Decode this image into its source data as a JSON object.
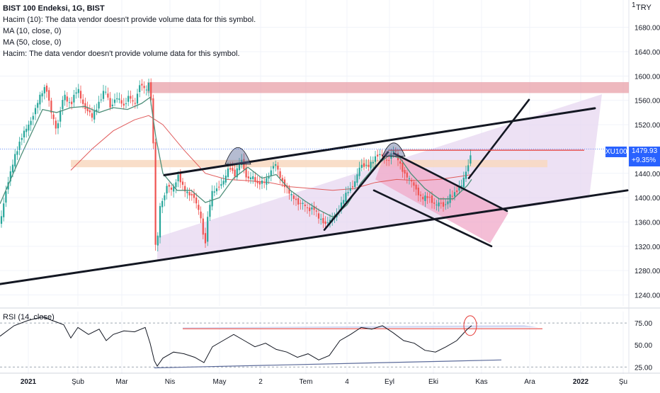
{
  "legend": {
    "title": "BIST 100 Endeksi, 1G, BIST",
    "line1": "Hacim (10): The data vendor doesn't provide volume data for this symbol.",
    "line2": "MA (10, close, 0)",
    "line3": "MA (50, close, 0)",
    "line4": "Hacim: The data vendor doesn't provide volume data for this symbol."
  },
  "rsi_label": "RSI (14, close)",
  "currency": "TRY",
  "currency_top": "1",
  "symbol_badge": "XU100",
  "last_price": "1479.93",
  "last_change": "+9.35%",
  "colors": {
    "up": "#26a69a",
    "down": "#ef5350",
    "ma_fast": "#4e8f7a",
    "ma_slow": "#e05a5a",
    "rsi_line": "#131722",
    "channel_fill": "#e6d4f0",
    "wedge_fill": "#f0a8c8",
    "resistance_zone": "#e8a0a8",
    "support_zone": "#f8d8c0",
    "badge": "#2962ff"
  },
  "chart_data": [
    {
      "type": "candlestick",
      "title": "BIST 100 Endeksi, 1G, BIST",
      "x_ticks": [
        "2021",
        "Şub",
        "Mar",
        "Nis",
        "May",
        "2",
        "Tem",
        "4",
        "Eyl",
        "Eki",
        "Kas",
        "Ara",
        "2022",
        "Şu"
      ],
      "y_ticks": [
        1240,
        1280,
        1320,
        1360,
        1400,
        1440,
        1480,
        1520,
        1560,
        1600,
        1640,
        1680
      ],
      "ylim": [
        1222,
        1725
      ],
      "last_value": 1479.93,
      "grid": true,
      "series": [
        {
          "name": "MA (10, close, 0)"
        },
        {
          "name": "MA (50, close, 0)"
        }
      ],
      "price_path": [
        [
          0,
          1360
        ],
        [
          20,
          1470
        ],
        [
          40,
          1520
        ],
        [
          55,
          1560
        ],
        [
          65,
          1585
        ],
        [
          72,
          1545
        ],
        [
          80,
          1505
        ],
        [
          90,
          1575
        ],
        [
          100,
          1550
        ],
        [
          110,
          1580
        ],
        [
          120,
          1548
        ],
        [
          130,
          1530
        ],
        [
          140,
          1560
        ],
        [
          148,
          1578
        ],
        [
          156,
          1545
        ],
        [
          164,
          1570
        ],
        [
          170,
          1560
        ],
        [
          175,
          1545
        ],
        [
          183,
          1570
        ],
        [
          190,
          1555
        ],
        [
          198,
          1585
        ],
        [
          205,
          1575
        ],
        [
          210,
          1590
        ],
        [
          214,
          1560
        ],
        [
          217,
          1470
        ],
        [
          219,
          1350
        ],
        [
          221,
          1260
        ],
        [
          224,
          1380
        ],
        [
          230,
          1395
        ],
        [
          236,
          1425
        ],
        [
          244,
          1410
        ],
        [
          252,
          1435
        ],
        [
          260,
          1418
        ],
        [
          268,
          1402
        ],
        [
          276,
          1395
        ],
        [
          284,
          1370
        ],
        [
          289,
          1315
        ],
        [
          294,
          1372
        ],
        [
          300,
          1410
        ],
        [
          308,
          1420
        ],
        [
          316,
          1425
        ],
        [
          324,
          1450
        ],
        [
          332,
          1440
        ],
        [
          340,
          1462
        ],
        [
          348,
          1430
        ],
        [
          356,
          1440
        ],
        [
          364,
          1418
        ],
        [
          372,
          1425
        ],
        [
          380,
          1440
        ],
        [
          388,
          1455
        ],
        [
          396,
          1432
        ],
        [
          404,
          1420
        ],
        [
          412,
          1400
        ],
        [
          420,
          1390
        ],
        [
          428,
          1395
        ],
        [
          436,
          1375
        ],
        [
          444,
          1382
        ],
        [
          452,
          1368
        ],
        [
          460,
          1352
        ],
        [
          468,
          1365
        ],
        [
          476,
          1375
        ],
        [
          484,
          1392
        ],
        [
          492,
          1412
        ],
        [
          500,
          1425
        ],
        [
          508,
          1448
        ],
        [
          516,
          1452
        ],
        [
          524,
          1460
        ],
        [
          532,
          1465
        ],
        [
          540,
          1470
        ],
        [
          548,
          1462
        ],
        [
          556,
          1477
        ],
        [
          564,
          1458
        ],
        [
          572,
          1440
        ],
        [
          580,
          1425
        ],
        [
          588,
          1412
        ],
        [
          596,
          1402
        ],
        [
          604,
          1398
        ],
        [
          612,
          1390
        ],
        [
          620,
          1395
        ],
        [
          628,
          1380
        ],
        [
          636,
          1405
        ],
        [
          644,
          1412
        ],
        [
          652,
          1418
        ],
        [
          660,
          1450
        ],
        [
          666,
          1480
        ]
      ],
      "ma_fast_path": [
        [
          0,
          1390
        ],
        [
          30,
          1470
        ],
        [
          60,
          1545
        ],
        [
          80,
          1540
        ],
        [
          100,
          1548
        ],
        [
          120,
          1550
        ],
        [
          140,
          1540
        ],
        [
          160,
          1548
        ],
        [
          180,
          1545
        ],
        [
          200,
          1555
        ],
        [
          212,
          1565
        ],
        [
          220,
          1500
        ],
        [
          230,
          1440
        ],
        [
          250,
          1412
        ],
        [
          270,
          1412
        ],
        [
          290,
          1392
        ],
        [
          310,
          1400
        ],
        [
          330,
          1432
        ],
        [
          350,
          1450
        ],
        [
          370,
          1432
        ],
        [
          390,
          1438
        ],
        [
          410,
          1412
        ],
        [
          430,
          1395
        ],
        [
          450,
          1380
        ],
        [
          470,
          1368
        ],
        [
          490,
          1388
        ],
        [
          510,
          1425
        ],
        [
          530,
          1452
        ],
        [
          550,
          1470
        ],
        [
          565,
          1465
        ],
        [
          580,
          1440
        ],
        [
          600,
          1415
        ],
        [
          620,
          1398
        ],
        [
          640,
          1398
        ],
        [
          660,
          1420
        ],
        [
          666,
          1430
        ]
      ],
      "ma_slow_path": [
        [
          100,
          1445
        ],
        [
          130,
          1480
        ],
        [
          160,
          1510
        ],
        [
          190,
          1528
        ],
        [
          210,
          1535
        ],
        [
          230,
          1520
        ],
        [
          260,
          1478
        ],
        [
          290,
          1440
        ],
        [
          320,
          1430
        ],
        [
          350,
          1428
        ],
        [
          380,
          1425
        ],
        [
          410,
          1418
        ],
        [
          440,
          1415
        ],
        [
          470,
          1412
        ],
        [
          500,
          1415
        ],
        [
          530,
          1425
        ],
        [
          560,
          1430
        ],
        [
          590,
          1428
        ],
        [
          620,
          1430
        ],
        [
          650,
          1435
        ],
        [
          666,
          1438
        ]
      ]
    },
    {
      "type": "line",
      "title": "RSI (14, close)",
      "y_ticks": [
        25,
        50,
        75
      ],
      "ylim": [
        22,
        88
      ],
      "levels": [
        75,
        25
      ],
      "series": [
        {
          "values_path": [
            [
              0,
              60
            ],
            [
              20,
              72
            ],
            [
              40,
              78
            ],
            [
              60,
              82
            ],
            [
              80,
              76
            ],
            [
              90,
              73
            ],
            [
              100,
              58
            ],
            [
              110,
              70
            ],
            [
              125,
              62
            ],
            [
              140,
              68
            ],
            [
              150,
              55
            ],
            [
              160,
              62
            ],
            [
              175,
              66
            ],
            [
              190,
              65
            ],
            [
              205,
              70
            ],
            [
              212,
              52
            ],
            [
              218,
              32
            ],
            [
              222,
              26
            ],
            [
              230,
              35
            ],
            [
              245,
              42
            ],
            [
              260,
              40
            ],
            [
              275,
              36
            ],
            [
              288,
              30
            ],
            [
              300,
              48
            ],
            [
              315,
              55
            ],
            [
              330,
              62
            ],
            [
              345,
              55
            ],
            [
              360,
              48
            ],
            [
              375,
              52
            ],
            [
              390,
              45
            ],
            [
              405,
              42
            ],
            [
              420,
              36
            ],
            [
              435,
              40
            ],
            [
              450,
              33
            ],
            [
              465,
              38
            ],
            [
              480,
              55
            ],
            [
              495,
              62
            ],
            [
              510,
              70
            ],
            [
              525,
              68
            ],
            [
              540,
              72
            ],
            [
              555,
              64
            ],
            [
              570,
              55
            ],
            [
              585,
              52
            ],
            [
              600,
              44
            ],
            [
              615,
              42
            ],
            [
              630,
              48
            ],
            [
              645,
              55
            ],
            [
              660,
              68
            ],
            [
              666,
              72
            ]
          ]
        }
      ]
    }
  ],
  "rsi_y_ticks": [
    "75.00",
    "50.00",
    "25.00"
  ],
  "price_y_ticks": [
    "1680.00",
    "1640.00",
    "1600.00",
    "1560.00",
    "1520.00",
    "1480.00",
    "1440.00",
    "1400.00",
    "1360.00",
    "1320.00",
    "1280.00",
    "1240.00"
  ]
}
